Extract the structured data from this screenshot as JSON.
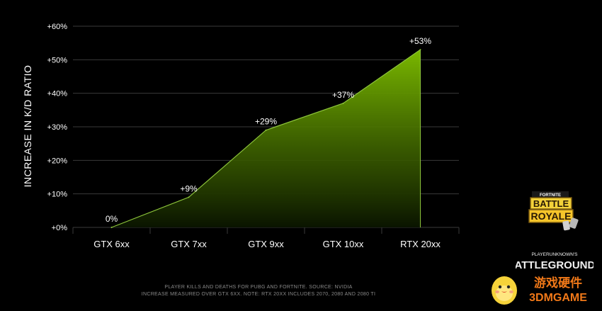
{
  "chart_data": {
    "type": "area",
    "categories": [
      "GTX 6xx",
      "GTX 7xx",
      "GTX 9xx",
      "GTX 10xx",
      "RTX 20xx"
    ],
    "values": [
      0,
      9,
      29,
      37,
      53
    ],
    "data_labels": [
      "0%",
      "+9%",
      "+29%",
      "+37%",
      "+53%"
    ],
    "ylabel": "INCREASE IN K/D RATIO",
    "ylim": [
      0,
      60
    ],
    "yticks": [
      0,
      10,
      20,
      30,
      40,
      50,
      60
    ],
    "ytick_labels": [
      "+0%",
      "+10%",
      "+20%",
      "+30%",
      "+40%",
      "+50%",
      "+60%"
    ],
    "grid": true,
    "colors": {
      "area_top": "#7ab800",
      "area_bottom": "#0a1400",
      "line": "#8cc43a",
      "grid": "#3a3a3a"
    }
  },
  "footnotes": {
    "line1": "PLAYER KILLS AND DEATHS FOR PUBG AND FORTNITE. SOURCE: NVIDIA",
    "line2": "INCREASE MEASURED OVER GTX 6XX. NOTE: RTX 20XX INCLUDES 2070, 2080 AND 2080 TI"
  },
  "logos": {
    "fortnite_top": "FORTNITE",
    "fortnite_mid": "BATTLE",
    "fortnite_bottom": "ROYALE",
    "pubg_small": "PLAYERUNKNOWN'S",
    "pubg_main": "BATTLEGROUNDS",
    "watermark_cn": "游戏硬件",
    "watermark_en": "3DMGAME"
  }
}
